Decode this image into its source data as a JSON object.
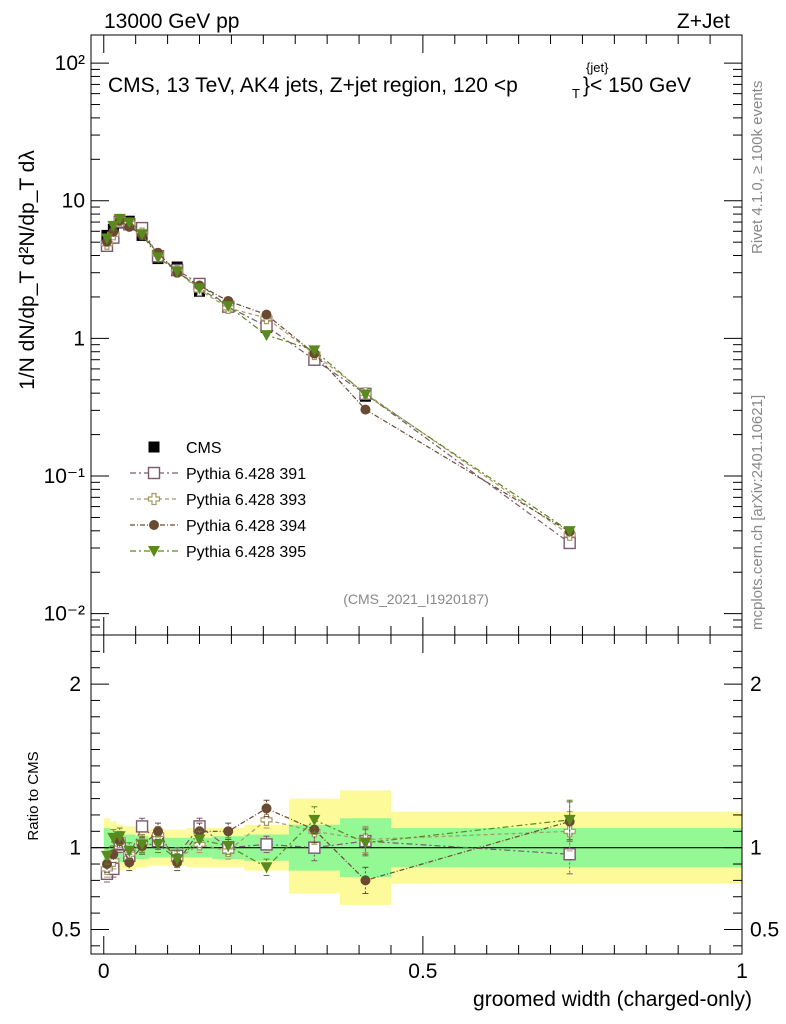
{
  "header": {
    "left": "13000 GeV pp",
    "right": "Z+Jet"
  },
  "side_labels": {
    "rivet": "Rivet 4.1.0, ≥ 100k events",
    "mcplots": "mcplots.cern.ch [arXiv:2401.10621]"
  },
  "chart_data": {
    "type": "scatter",
    "title": "CMS, 13 TeV, AK4 jets, Z+jet region, 120 <p",
    "title_sup": "{jet}",
    "title_sub": "T",
    "title_tail": "}< 150 GeV",
    "analysis_id": "(CMS_2021_I1920187)",
    "ylabel_main": "1/N dN/dp_T d²N/dp_T dλ",
    "ylabel_ratio": "Ratio to CMS",
    "xlabel": "groomed width (charged-only)",
    "xlim": [
      -0.02,
      1.0
    ],
    "ylim_main": [
      0.007,
      160
    ],
    "ylim_ratio": [
      0.35,
      2.3
    ],
    "x_ticks": [
      "0",
      "0.5",
      "1"
    ],
    "y_ticks_main": [
      "10⁻²",
      "10⁻¹",
      "1",
      "10",
      "10²"
    ],
    "y_ticks_ratio": [
      "0.5",
      "1",
      "2"
    ],
    "data_bins": [
      {
        "x": [
          0.0,
          0.01
        ],
        "lo": 0.88,
        "hi": 1.12,
        "lo2": 0.82,
        "hi2": 1.18
      },
      {
        "x": [
          0.01,
          0.02
        ],
        "lo": 0.9,
        "hi": 1.1,
        "lo2": 0.84,
        "hi2": 1.16
      },
      {
        "x": [
          0.02,
          0.03
        ],
        "lo": 0.91,
        "hi": 1.09,
        "lo2": 0.86,
        "hi2": 1.14
      },
      {
        "x": [
          0.03,
          0.05
        ],
        "lo": 0.92,
        "hi": 1.08,
        "lo2": 0.87,
        "hi2": 1.13
      },
      {
        "x": [
          0.05,
          0.07
        ],
        "lo": 0.93,
        "hi": 1.07,
        "lo2": 0.88,
        "hi2": 1.12
      },
      {
        "x": [
          0.07,
          0.1
        ],
        "lo": 0.94,
        "hi": 1.06,
        "lo2": 0.89,
        "hi2": 1.11
      },
      {
        "x": [
          0.1,
          0.13
        ],
        "lo": 0.94,
        "hi": 1.06,
        "lo2": 0.89,
        "hi2": 1.11
      },
      {
        "x": [
          0.13,
          0.17
        ],
        "lo": 0.94,
        "hi": 1.06,
        "lo2": 0.88,
        "hi2": 1.12
      },
      {
        "x": [
          0.17,
          0.22
        ],
        "lo": 0.93,
        "hi": 1.07,
        "lo2": 0.88,
        "hi2": 1.12
      },
      {
        "x": [
          0.22,
          0.29
        ],
        "lo": 0.92,
        "hi": 1.08,
        "lo2": 0.86,
        "hi2": 1.14
      },
      {
        "x": [
          0.29,
          0.37
        ],
        "lo": 0.86,
        "hi": 1.14,
        "lo2": 0.72,
        "hi2": 1.3
      },
      {
        "x": [
          0.37,
          0.45
        ],
        "lo": 0.82,
        "hi": 1.18,
        "lo2": 0.65,
        "hi2": 1.35
      },
      {
        "x": [
          0.45,
          1.0
        ],
        "lo": 0.88,
        "hi": 1.12,
        "lo2": 0.78,
        "hi2": 1.22
      }
    ],
    "cms_points": [
      {
        "x": 0.005,
        "y": 5.6
      },
      {
        "x": 0.015,
        "y": 6.2
      },
      {
        "x": 0.025,
        "y": 6.9
      },
      {
        "x": 0.04,
        "y": 7.1
      },
      {
        "x": 0.06,
        "y": 5.6
      },
      {
        "x": 0.085,
        "y": 3.8
      },
      {
        "x": 0.115,
        "y": 3.3
      },
      {
        "x": 0.15,
        "y": 2.2
      },
      {
        "x": 0.195,
        "y": 1.7
      },
      {
        "x": 0.255,
        "y": 1.2
      },
      {
        "x": 0.33,
        "y": 0.7
      },
      {
        "x": 0.41,
        "y": 0.38
      },
      {
        "x": 0.73,
        "y": 0.034
      }
    ],
    "series": [
      {
        "name": "Pythia 6.428 391",
        "color": "#7a5a72",
        "marker": "open-square",
        "x": [
          0.005,
          0.015,
          0.025,
          0.04,
          0.06,
          0.085,
          0.115,
          0.15,
          0.195,
          0.255,
          0.33,
          0.41,
          0.73
        ],
        "ratio": [
          0.84,
          0.87,
          1.02,
          0.95,
          1.13,
          1.04,
          0.95,
          1.13,
          1.0,
          1.02,
          1.0,
          1.04,
          0.96
        ]
      },
      {
        "name": "Pythia 6.428 393",
        "color": "#a89868",
        "marker": "open-cross",
        "x": [
          0.005,
          0.015,
          0.025,
          0.04,
          0.06,
          0.085,
          0.115,
          0.15,
          0.195,
          0.255,
          0.33,
          0.41,
          0.73
        ],
        "ratio": [
          0.87,
          0.92,
          1.05,
          0.96,
          1.03,
          1.08,
          0.93,
          1.02,
          0.98,
          1.17,
          1.1,
          1.05,
          1.1
        ]
      },
      {
        "name": "Pythia 6.428 394",
        "color": "#6b4a32",
        "marker": "filled-circle",
        "x": [
          0.005,
          0.015,
          0.025,
          0.04,
          0.06,
          0.085,
          0.115,
          0.15,
          0.195,
          0.255,
          0.33,
          0.41,
          0.73
        ],
        "ratio": [
          0.9,
          0.96,
          1.04,
          0.91,
          1.01,
          1.1,
          0.91,
          1.1,
          1.1,
          1.24,
          1.11,
          0.8,
          1.16
        ]
      },
      {
        "name": "Pythia 6.428 395",
        "color": "#5a8a1e",
        "marker": "filled-triangle-down",
        "x": [
          0.005,
          0.015,
          0.025,
          0.04,
          0.06,
          0.085,
          0.115,
          0.15,
          0.195,
          0.255,
          0.33,
          0.41,
          0.73
        ],
        "ratio": [
          0.95,
          1.06,
          1.07,
          0.98,
          1.02,
          1.02,
          0.93,
          1.05,
          1.01,
          0.88,
          1.17,
          1.03,
          1.17
        ]
      }
    ],
    "legend_data_label": "CMS"
  }
}
